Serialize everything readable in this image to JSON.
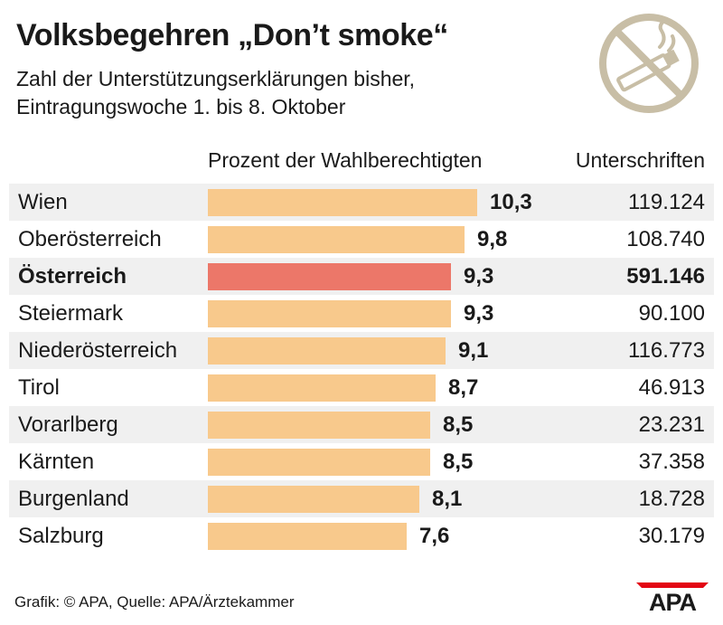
{
  "header": {
    "title": "Volksbegehren „Don’t smoke“",
    "subtitle_line1": "Zahl der Unterstützungserklärungen bisher,",
    "subtitle_line2": "Eintragungswoche 1. bis 8. Oktober"
  },
  "icons": {
    "no_smoking": "no-smoking-icon",
    "logo": "apa-logo"
  },
  "columns": {
    "percent_label": "Prozent der Wahlberechtigten",
    "signatures_label": "Unterschriften"
  },
  "colors": {
    "bar": "#f8c98c",
    "highlight_bar": "#ec7769",
    "stripe": "#f0f0f0",
    "icon": "#c8bea6"
  },
  "chart_data": {
    "type": "bar",
    "orientation": "horizontal",
    "title": "Volksbegehren „Don’t smoke“",
    "subtitle": "Zahl der Unterstützungserklärungen bisher, Eintragungswoche 1. bis 8. Oktober",
    "xlabel": "Prozent der Wahlberechtigten",
    "xlim": [
      0,
      10.3
    ],
    "grid": false,
    "rows": [
      {
        "category": "Wien",
        "value": 10.3,
        "value_label": "10,3",
        "signatures": "119.124",
        "highlight": false
      },
      {
        "category": "Oberösterreich",
        "value": 9.8,
        "value_label": "9,8",
        "signatures": "108.740",
        "highlight": false
      },
      {
        "category": "Österreich",
        "value": 9.3,
        "value_label": "9,3",
        "signatures": "591.146",
        "highlight": true
      },
      {
        "category": "Steiermark",
        "value": 9.3,
        "value_label": "9,3",
        "signatures": "90.100",
        "highlight": false
      },
      {
        "category": "Niederösterreich",
        "value": 9.1,
        "value_label": "9,1",
        "signatures": "116.773",
        "highlight": false
      },
      {
        "category": "Tirol",
        "value": 8.7,
        "value_label": "8,7",
        "signatures": "46.913",
        "highlight": false
      },
      {
        "category": "Vorarlberg",
        "value": 8.5,
        "value_label": "8,5",
        "signatures": "23.231",
        "highlight": false
      },
      {
        "category": "Kärnten",
        "value": 8.5,
        "value_label": "8,5",
        "signatures": "37.358",
        "highlight": false
      },
      {
        "category": "Burgenland",
        "value": 8.1,
        "value_label": "8,1",
        "signatures": "18.728",
        "highlight": false
      },
      {
        "category": "Salzburg",
        "value": 7.6,
        "value_label": "7,6",
        "signatures": "30.179",
        "highlight": false
      }
    ]
  },
  "footer": {
    "source": "Grafik: © APA, Quelle: APA/Ärztekammer",
    "logo_text": "APA"
  }
}
